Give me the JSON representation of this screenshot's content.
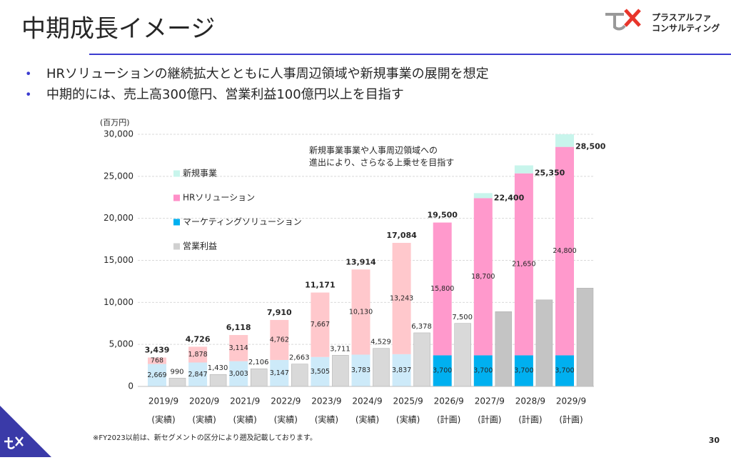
{
  "header": {
    "title": "中期成長イメージ",
    "logo_lines": [
      "プラスアルファ",
      "コンサルティング"
    ]
  },
  "bullets": [
    "HRソリューションの継続拡大とともに人事周辺領域や新規事業の展開を想定",
    "中期的には、売上高300億円、営業利益100億円以上を目指す"
  ],
  "chart_data": {
    "type": "bar",
    "unit_label": "(百万円)",
    "annotation": [
      "新規事業事業や人事周辺領域への",
      "進出により、さらなる上乗せを目指す"
    ],
    "categories": [
      "2019/9",
      "2020/9",
      "2021/9",
      "2022/9",
      "2023/9",
      "2024/9",
      "2025/9",
      "2026/9",
      "2027/9",
      "2028/9",
      "2029/9"
    ],
    "sublabels": [
      "(実績)",
      "(実績)",
      "(実績)",
      "(実績)",
      "(実績)",
      "(実績)",
      "(実績)",
      "(計画)",
      "(計画)",
      "(計画)",
      "(計画)"
    ],
    "ylim": [
      0,
      30000
    ],
    "yticks": [
      0,
      {
        "value": 5000,
        "label": "5,000"
      },
      {
        "value": 10000,
        "label": "10,000"
      },
      {
        "value": 15000,
        "label": "15,000"
      },
      {
        "value": 20000,
        "label": "20,000"
      },
      {
        "value": 25000,
        "label": "25,000"
      },
      {
        "value": 30000,
        "label": "30,000"
      }
    ],
    "grid": true,
    "series": [
      {
        "name": "新規事業",
        "color": "#c8f5ec",
        "stacked": true,
        "values": [
          null,
          null,
          null,
          null,
          null,
          null,
          null,
          null,
          600,
          950,
          1500
        ],
        "colors": [
          "#c8f5ec",
          "#c8f5ec",
          "#c8f5ec",
          "#c8f5ec",
          "#c8f5ec",
          "#c8f5ec",
          "#c8f5ec",
          "#c8f5ec",
          "#c8f5ec",
          "#c8f5ec",
          "#c8f5ec"
        ]
      },
      {
        "name": "HRソリューション",
        "color": "#ff8fc8",
        "stacked": true,
        "values": [
          768,
          1878,
          3114,
          4762,
          7667,
          10130,
          13243,
          15800,
          18700,
          21650,
          24800
        ],
        "value_labels": [
          "768",
          "1,878",
          "3,114",
          "4,762",
          "7,667",
          "10,130",
          "13,243",
          "15,800",
          "18,700",
          "21,650",
          "24,800"
        ],
        "colors": [
          "#ffc8cc",
          "#ffc8cc",
          "#ffc8cc",
          "#ffc8cc",
          "#ffc8cc",
          "#ffc8cc",
          "#ffc8cc",
          "#ff99cc",
          "#ff99cc",
          "#ff99cc",
          "#ff99cc"
        ]
      },
      {
        "name": "マーケティングソリューション",
        "color": "#00b0f0",
        "stacked": true,
        "values": [
          2669,
          2847,
          3003,
          3147,
          3505,
          3783,
          3837,
          3700,
          3700,
          3700,
          3700
        ],
        "value_labels": [
          "2,669",
          "2,847",
          "3,003",
          "3,147",
          "3,505",
          "3,783",
          "3,837",
          "3,700",
          "3,700",
          "3,700",
          "3,700"
        ],
        "colors": [
          "#cdeaf9",
          "#cdeaf9",
          "#cdeaf9",
          "#cdeaf9",
          "#cdeaf9",
          "#cdeaf9",
          "#cdeaf9",
          "#00b0f0",
          "#00b0f0",
          "#00b0f0",
          "#00b0f0"
        ]
      },
      {
        "name": "営業利益",
        "color": "#d0d0d0",
        "stacked": false,
        "values": [
          990,
          1430,
          2106,
          2663,
          3711,
          4529,
          6378,
          7500,
          8900,
          10300,
          11700
        ],
        "value_labels": [
          "990",
          "1,430",
          "2,106",
          "2,663",
          "3,711",
          "4,529",
          "6,378",
          "7,500",
          null,
          null,
          null
        ],
        "colors": [
          "#d9d9d9",
          "#d9d9d9",
          "#d9d9d9",
          "#d9d9d9",
          "#d9d9d9",
          "#d9d9d9",
          "#d9d9d9",
          "#d9d9d9",
          "#c4c4c4",
          "#c4c4c4",
          "#c4c4c4"
        ]
      }
    ],
    "totals": {
      "values": [
        3439,
        4726,
        6118,
        7910,
        11171,
        13914,
        17084,
        19500,
        22400,
        25350,
        28500
      ],
      "value_labels": [
        "3,439",
        "4,726",
        "6,118",
        "7,910",
        "11,171",
        "13,914",
        "17,084",
        "19,500",
        "22,400",
        "25,350",
        "28,500"
      ]
    }
  },
  "footnote": "※FY2023以前は、新セグメントの区分により遡及記載しております。",
  "page_number": "30"
}
